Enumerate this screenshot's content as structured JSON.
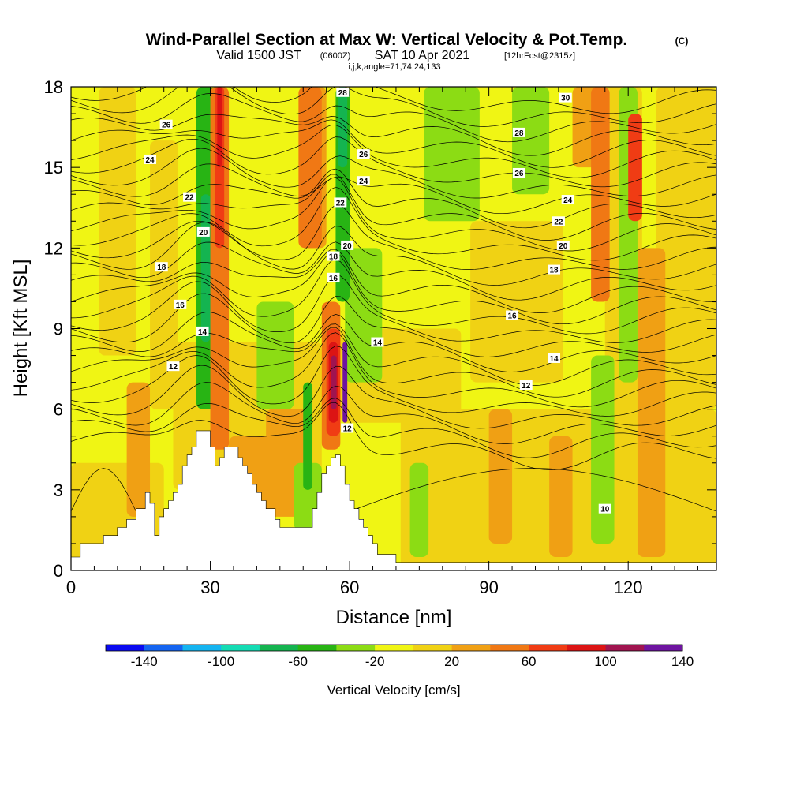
{
  "header": {
    "title": "Wind-Parallel Section at Max W: Vertical Velocity & Pot.Temp.",
    "copyright": "(C)",
    "valid_prefix": "Valid 1500 JST",
    "valid_z": "(0600Z)",
    "valid_date": "SAT 10 Apr 2021",
    "forecast": "[12hrFcst@2315z]",
    "indices": "i,j,k,angle=71,74,24,133"
  },
  "colors": {
    "bins": [
      "#0a0af0",
      "#1464f0",
      "#14b4f0",
      "#14dcb4",
      "#14b450",
      "#28b414",
      "#8cdc14",
      "#f0f514",
      "#f0d214",
      "#f0a014",
      "#f07814",
      "#f03c14",
      "#dc1414",
      "#a01450",
      "#6e14a0"
    ],
    "terrain": "#ffffff",
    "contour": "#000000"
  },
  "chart_data": {
    "type": "heatmap",
    "xlabel": "Distance [nm]",
    "ylabel": "Height [Kft MSL]",
    "xlim": [
      0,
      139
    ],
    "ylim": [
      0,
      18
    ],
    "xticks": [
      "0",
      "30",
      "60",
      "90",
      "120"
    ],
    "xtick_values": [
      0,
      30,
      60,
      90,
      120
    ],
    "yticks": [
      "0",
      "3",
      "6",
      "9",
      "12",
      "15",
      "18"
    ],
    "ytick_values": [
      0,
      3,
      6,
      9,
      12,
      15,
      18
    ],
    "terrain_kft": {
      "x": [
        0,
        2,
        7,
        10,
        12,
        14,
        16,
        17,
        18,
        19,
        20,
        21,
        22,
        23,
        24,
        25,
        26,
        27,
        29,
        30,
        31,
        32,
        33,
        35,
        36,
        37,
        38,
        39,
        40,
        41,
        42,
        43,
        44,
        45,
        46,
        47,
        48,
        50,
        51,
        52,
        53,
        54,
        55,
        56,
        57,
        58,
        59,
        60,
        61,
        62,
        63,
        64,
        65,
        66,
        67,
        68,
        70,
        71,
        139
      ],
      "y": [
        0.5,
        1.0,
        1.3,
        1.6,
        1.9,
        2.3,
        2.9,
        2.5,
        1.3,
        2.0,
        2.3,
        2.6,
        2.9,
        3.2,
        3.9,
        4.3,
        4.6,
        5.2,
        5.2,
        4.6,
        3.9,
        4.2,
        4.6,
        4.6,
        4.2,
        3.9,
        3.6,
        3.2,
        2.9,
        2.6,
        2.3,
        2.3,
        1.9,
        1.6,
        1.6,
        1.6,
        1.6,
        1.6,
        1.6,
        2.3,
        2.9,
        3.6,
        3.9,
        4.2,
        4.3,
        3.9,
        3.2,
        2.6,
        2.3,
        1.9,
        1.6,
        1.3,
        1.0,
        0.6,
        0.6,
        0.6,
        0.3,
        0.3,
        0.3
      ]
    },
    "contour_levels": [
      "10",
      "12",
      "14",
      "16",
      "18",
      "20",
      "22",
      "24",
      "26",
      "28",
      "30"
    ],
    "contour_label_positions": [
      {
        "label": "12",
        "x": 22,
        "y": 7.6
      },
      {
        "label": "14",
        "x": 28.3,
        "y": 8.9
      },
      {
        "label": "16",
        "x": 23.5,
        "y": 9.9
      },
      {
        "label": "18",
        "x": 19.5,
        "y": 11.3
      },
      {
        "label": "20",
        "x": 28.5,
        "y": 12.6
      },
      {
        "label": "22",
        "x": 25.5,
        "y": 13.9
      },
      {
        "label": "24",
        "x": 17,
        "y": 15.3
      },
      {
        "label": "26",
        "x": 20.5,
        "y": 16.6
      },
      {
        "label": "12",
        "x": 59.5,
        "y": 5.3
      },
      {
        "label": "14",
        "x": 66,
        "y": 8.5
      },
      {
        "label": "16",
        "x": 56.5,
        "y": 10.9
      },
      {
        "label": "18",
        "x": 56.5,
        "y": 11.7
      },
      {
        "label": "20",
        "x": 59.5,
        "y": 12.1
      },
      {
        "label": "22",
        "x": 58,
        "y": 13.7
      },
      {
        "label": "24",
        "x": 63,
        "y": 14.5
      },
      {
        "label": "26",
        "x": 63,
        "y": 15.5
      },
      {
        "label": "28",
        "x": 58.5,
        "y": 17.8
      },
      {
        "label": "12",
        "x": 98,
        "y": 6.9
      },
      {
        "label": "14",
        "x": 104,
        "y": 7.9
      },
      {
        "label": "16",
        "x": 95,
        "y": 9.5
      },
      {
        "label": "18",
        "x": 104,
        "y": 11.2
      },
      {
        "label": "20",
        "x": 106,
        "y": 12.1
      },
      {
        "label": "22",
        "x": 105,
        "y": 13
      },
      {
        "label": "24",
        "x": 107,
        "y": 13.8
      },
      {
        "label": "26",
        "x": 96.5,
        "y": 14.8
      },
      {
        "label": "28",
        "x": 96.5,
        "y": 16.3
      },
      {
        "label": "30",
        "x": 106.5,
        "y": 17.6
      },
      {
        "label": "10",
        "x": 115,
        "y": 2.3
      }
    ],
    "velocity_regions": [
      {
        "x": 0,
        "w": 139,
        "y0": 0,
        "y1": 18,
        "value": -10
      },
      {
        "x": 71,
        "w": 68,
        "y0": 0,
        "y1": 6,
        "value": 10
      },
      {
        "x": 0,
        "w": 20,
        "y0": 0,
        "y1": 4,
        "value": 10
      },
      {
        "x": 22,
        "w": 32,
        "y0": 3,
        "y1": 8.5,
        "value": 10
      },
      {
        "x": 58,
        "w": 26,
        "y0": 5.5,
        "y1": 9,
        "value": 10
      },
      {
        "x": 86,
        "w": 20,
        "y0": 7,
        "y1": 13,
        "value": 10
      },
      {
        "x": 6,
        "w": 8,
        "y0": 8,
        "y1": 18,
        "value": 10
      },
      {
        "x": 17,
        "w": 6,
        "y0": 6,
        "y1": 16,
        "value": 10
      },
      {
        "x": 126,
        "w": 13,
        "y0": 6,
        "y1": 18,
        "value": 10
      },
      {
        "x": 115,
        "w": 8,
        "y0": 2,
        "y1": 18,
        "value": 10
      },
      {
        "x": 42,
        "w": 10,
        "y0": 2,
        "y1": 6,
        "value": 30
      },
      {
        "x": 34,
        "w": 10,
        "y0": 1.5,
        "y1": 5,
        "value": 30
      },
      {
        "x": 12,
        "w": 5,
        "y0": 2,
        "y1": 7,
        "value": 30
      },
      {
        "x": 90,
        "w": 5,
        "y0": 1,
        "y1": 6,
        "value": 30
      },
      {
        "x": 103,
        "w": 5,
        "y0": 0.5,
        "y1": 5,
        "value": 30
      },
      {
        "x": 122,
        "w": 6,
        "y0": 0.5,
        "y1": 12,
        "value": 30
      },
      {
        "x": 50,
        "w": 5,
        "y0": 12,
        "y1": 18,
        "value": 30
      },
      {
        "x": 108,
        "w": 6,
        "y0": 15,
        "y1": 18,
        "value": 30
      },
      {
        "x": 40,
        "w": 8,
        "y0": 6,
        "y1": 10,
        "value": -30
      },
      {
        "x": 48,
        "w": 6,
        "y0": 1.5,
        "y1": 4,
        "value": -30
      },
      {
        "x": 59,
        "w": 8,
        "y0": 7,
        "y1": 12,
        "value": -30
      },
      {
        "x": 76,
        "w": 12,
        "y0": 13,
        "y1": 18,
        "value": -30
      },
      {
        "x": 95,
        "w": 8,
        "y0": 14,
        "y1": 18,
        "value": -30
      },
      {
        "x": 112,
        "w": 5,
        "y0": 1,
        "y1": 8,
        "value": -30
      },
      {
        "x": 118,
        "w": 4,
        "y0": 7,
        "y1": 18,
        "value": -30
      },
      {
        "x": 27,
        "w": 4,
        "y0": 6,
        "y1": 18,
        "value": -50
      },
      {
        "x": 57,
        "w": 3,
        "y0": 10,
        "y1": 18,
        "value": -50
      },
      {
        "x": 50,
        "w": 2,
        "y0": 3,
        "y1": 7,
        "value": -50
      },
      {
        "x": 28,
        "w": 2,
        "y0": 8.5,
        "y1": 14,
        "value": -70
      },
      {
        "x": 57.5,
        "w": 2,
        "y0": 15,
        "y1": 18,
        "value": -70
      },
      {
        "x": 30,
        "w": 4,
        "y0": 4.5,
        "y1": 18,
        "value": 50
      },
      {
        "x": 31,
        "w": 2,
        "y0": 12,
        "y1": 18,
        "value": 70
      },
      {
        "x": 31.5,
        "w": 1,
        "y0": 15,
        "y1": 18,
        "value": 90
      },
      {
        "x": 49,
        "w": 5,
        "y0": 12,
        "y1": 18,
        "value": 50
      },
      {
        "x": 54,
        "w": 4,
        "y0": 4.5,
        "y1": 10,
        "value": 50
      },
      {
        "x": 55,
        "w": 3,
        "y0": 5,
        "y1": 9,
        "value": 70
      },
      {
        "x": 55.5,
        "w": 2,
        "y0": 5.5,
        "y1": 8.5,
        "value": 90
      },
      {
        "x": 56,
        "w": 1.2,
        "y0": 6,
        "y1": 8,
        "value": 110
      },
      {
        "x": 58.5,
        "w": 1,
        "y0": 5.5,
        "y1": 8.5,
        "value": 150
      },
      {
        "x": 112,
        "w": 4,
        "y0": 10,
        "y1": 18,
        "value": 50
      },
      {
        "x": 120,
        "w": 3,
        "y0": 13,
        "y1": 17,
        "value": 70
      },
      {
        "x": 73,
        "w": 4,
        "y0": 0.5,
        "y1": 4,
        "value": -30
      }
    ]
  },
  "colorbar": {
    "label": "Vertical Velocity [cm/s]",
    "tick_labels": [
      "-140",
      "-100",
      "-60",
      "-20",
      "20",
      "60",
      "100",
      "140"
    ]
  }
}
